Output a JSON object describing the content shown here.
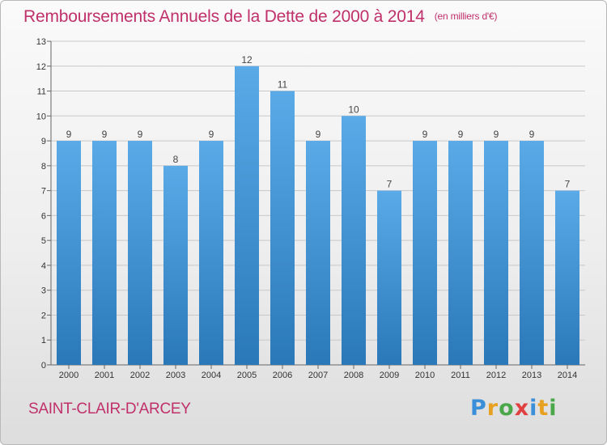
{
  "chart_data": {
    "type": "bar",
    "title": "Remboursements Annuels de la Dette de 2000 à 2014",
    "subtitle": "(en milliers d'€)",
    "categories": [
      "2000",
      "2001",
      "2002",
      "2003",
      "2004",
      "2005",
      "2006",
      "2007",
      "2008",
      "2009",
      "2010",
      "2011",
      "2012",
      "2013",
      "2014"
    ],
    "values": [
      9,
      9,
      9,
      8,
      9,
      12,
      11,
      9,
      10,
      7,
      9,
      9,
      9,
      9,
      7
    ],
    "ylim": [
      0,
      13
    ],
    "yticks": [
      0,
      1,
      2,
      3,
      4,
      5,
      6,
      7,
      8,
      9,
      10,
      11,
      12,
      13
    ],
    "grid": true,
    "xlabel": "",
    "ylabel": "",
    "colors": {
      "bar_top": "#5aaae8",
      "bar_bottom": "#2a78b8",
      "grid": "#c8c8c8",
      "title": "#c0306a"
    }
  },
  "footer": {
    "commune": "SAINT-CLAIR-D'ARCEY",
    "logo_letters": [
      "P",
      "r",
      "o",
      "x",
      "i",
      "t",
      "i"
    ]
  }
}
